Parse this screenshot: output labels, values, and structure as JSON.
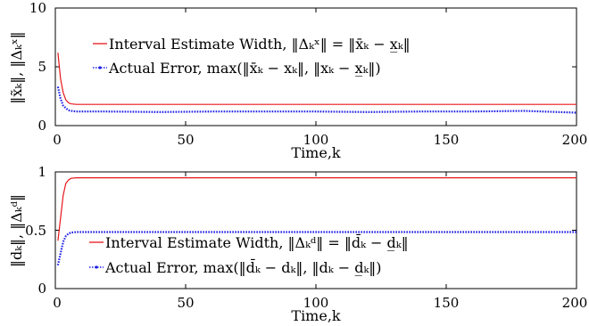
{
  "colors": {
    "interval": "#e8161b",
    "error": "#1f1fe6",
    "axis": "#000000"
  },
  "chart_data": [
    {
      "type": "line",
      "title": "",
      "xlabel": "Time,k",
      "ylabel": "‖x̃ₖ‖, ‖Δₖˣ‖",
      "xlim": [
        0,
        200
      ],
      "ylim": [
        0,
        10
      ],
      "xticks": [
        "0",
        "50",
        "100",
        "150",
        "200"
      ],
      "yticks": [
        "0",
        "5",
        "10"
      ],
      "legend": {
        "placement": "top-right",
        "entries": [
          "Interval Estimate Width, ‖Δₖˣ‖ = ‖x̄ₖ − x̲ₖ‖",
          "Actual Error, max(‖x̄ₖ − xₖ‖, ‖xₖ − x̲ₖ‖)"
        ]
      },
      "series": [
        {
          "name": "Interval Estimate Width",
          "style": "solid",
          "x": [
            1,
            2,
            3,
            4,
            5,
            6,
            8,
            10,
            200
          ],
          "values": [
            6.2,
            4.0,
            2.8,
            2.2,
            1.95,
            1.85,
            1.8,
            1.8,
            1.8
          ]
        },
        {
          "name": "Actual Error",
          "style": "dotted",
          "x": [
            1,
            2,
            3,
            4,
            5,
            6,
            8,
            10,
            20,
            40,
            60,
            80,
            100,
            120,
            140,
            160,
            180,
            200
          ],
          "values": [
            3.3,
            2.3,
            1.7,
            1.5,
            1.3,
            1.25,
            1.2,
            1.2,
            1.2,
            1.15,
            1.2,
            1.2,
            1.2,
            1.15,
            1.2,
            1.2,
            1.25,
            1.1
          ]
        }
      ]
    },
    {
      "type": "line",
      "title": "",
      "xlabel": "Time,k",
      "ylabel": "‖dₖ‖, ‖Δₖᵈ‖",
      "xlim": [
        0,
        200
      ],
      "ylim": [
        0,
        1
      ],
      "xticks": [
        "0",
        "50",
        "100",
        "150",
        "200"
      ],
      "yticks": [
        "0",
        "0.5",
        "1"
      ],
      "legend": {
        "placement": "bottom-right",
        "entries": [
          "Interval Estimate Width, ‖Δₖᵈ‖ = ‖d̄ₖ − d̲ₖ‖",
          "Actual Error, max(‖d̄ₖ − dₖ‖, ‖dₖ − d̲ₖ‖)"
        ]
      },
      "series": [
        {
          "name": "Interval Estimate Width",
          "style": "solid",
          "x": [
            1,
            2,
            3,
            4,
            5,
            6,
            8,
            10,
            200
          ],
          "values": [
            0.41,
            0.6,
            0.8,
            0.9,
            0.93,
            0.945,
            0.95,
            0.95,
            0.95
          ]
        },
        {
          "name": "Actual Error",
          "style": "dotted",
          "x": [
            1,
            2,
            3,
            4,
            5,
            6,
            8,
            10,
            200
          ],
          "values": [
            0.2,
            0.3,
            0.4,
            0.45,
            0.47,
            0.48,
            0.485,
            0.485,
            0.485
          ]
        }
      ]
    }
  ]
}
